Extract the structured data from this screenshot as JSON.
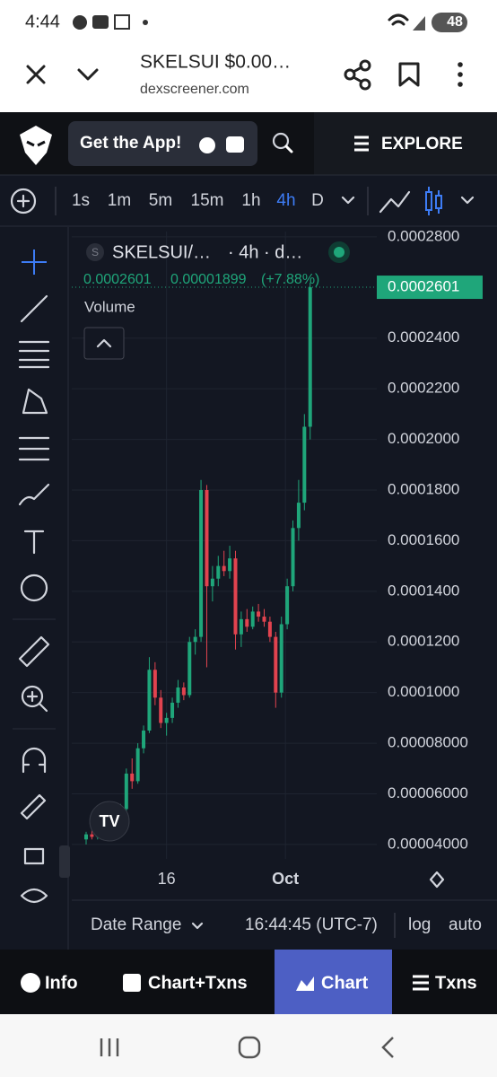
{
  "status_bar": {
    "time": "4:44",
    "battery": "48"
  },
  "browser": {
    "title": "SKELSUI $0.00…",
    "url": "dexscreener.com"
  },
  "header": {
    "app_button": "Get the App!",
    "explore": "EXPLORE"
  },
  "intervals": {
    "items": [
      "1s",
      "1m",
      "5m",
      "15m",
      "1h",
      "4h",
      "D"
    ],
    "active": 5
  },
  "legend": {
    "symbol_icon": "S",
    "symbol": "SKELSUI/…",
    "interval": "· 4h · d…",
    "price": "0.0002601",
    "change": "0.00001899",
    "change_pct": "(+7.88%)",
    "volume": "Volume"
  },
  "chart_data": {
    "type": "candlestick",
    "open": [
      4.2e-05,
      4.4e-05,
      4.3e-05,
      4.6e-05,
      4.8e-05,
      4.7e-05,
      5.1e-05,
      5.4e-05,
      6.8e-05,
      6.5e-05,
      7.8e-05,
      8.5e-05,
      0.000109,
      9.8e-05,
      8.8e-05,
      9e-05,
      9.6e-05,
      0.000102,
      9.9e-05,
      0.00012,
      0.000122,
      0.00018,
      0.000142,
      0.000145,
      0.00015,
      0.000148,
      0.000153,
      0.000123,
      0.000129,
      0.000126,
      0.000132,
      0.00013,
      0.000128,
      0.000122,
      0.0001,
      0.000127,
      0.000142,
      0.000165,
      0.000175,
      0.000205
    ],
    "high": [
      4.5e-05,
      4.7e-05,
      4.8e-05,
      5e-05,
      5.2e-05,
      5.3e-05,
      5.6e-05,
      7e-05,
      7.4e-05,
      8e-05,
      8.7e-05,
      0.000114,
      0.000112,
      0.000101,
      9.2e-05,
      9.8e-05,
      0.000105,
      0.000104,
      0.000122,
      0.000125,
      0.000184,
      0.000182,
      0.00015,
      0.000154,
      0.000156,
      0.000158,
      0.000156,
      0.000132,
      0.000133,
      0.000134,
      0.000135,
      0.000133,
      0.00013,
      0.000124,
      0.00013,
      0.000145,
      0.000168,
      0.000184,
      0.00021,
      0.000262
    ],
    "low": [
      4e-05,
      4.2e-05,
      4.2e-05,
      4.4e-05,
      4.5e-05,
      4.6e-05,
      4.9e-05,
      5.3e-05,
      6.2e-05,
      6.4e-05,
      7.6e-05,
      8.4e-05,
      9.5e-05,
      8.6e-05,
      8.3e-05,
      8.8e-05,
      9.4e-05,
      9.7e-05,
      9.8e-05,
      0.000115,
      0.00012,
      0.00011,
      0.000136,
      0.000142,
      0.000146,
      0.000145,
      0.000117,
      0.000118,
      0.000124,
      0.000125,
      0.000128,
      0.000126,
      0.00012,
      9.4e-05,
      9.8e-05,
      0.000125,
      0.00014,
      0.00016,
      0.000172,
      0.0002
    ],
    "close": [
      4.4e-05,
      4.3e-05,
      4.6e-05,
      4.8e-05,
      4.7e-05,
      5.1e-05,
      5.4e-05,
      6.8e-05,
      6.5e-05,
      7.8e-05,
      8.5e-05,
      0.000109,
      9.8e-05,
      8.8e-05,
      9e-05,
      9.6e-05,
      0.000102,
      9.9e-05,
      0.00012,
      0.000122,
      0.00018,
      0.000142,
      0.000145,
      0.00015,
      0.000148,
      0.000153,
      0.000123,
      0.000129,
      0.000126,
      0.000132,
      0.00013,
      0.000128,
      0.000122,
      0.0001,
      0.000127,
      0.000142,
      0.000165,
      0.000175,
      0.000205,
      0.0002601
    ],
    "up_color": "#1fa67a",
    "down_color": "#e2434f",
    "xlim": [
      -2.5,
      50.6
    ],
    "xticks": [
      {
        "value": 14,
        "label": "16"
      },
      {
        "value": 34.7,
        "label": "Oct"
      }
    ],
    "ylim": [
      3.43e-05,
      0.0002821
    ],
    "yticks": [
      {
        "value": 4e-05,
        "label": "0.00004000"
      },
      {
        "value": 6e-05,
        "label": "0.00006000"
      },
      {
        "value": 8e-05,
        "label": "0.00008000"
      },
      {
        "value": 0.0001,
        "label": "0.0001000"
      },
      {
        "value": 0.00012,
        "label": "0.0001200"
      },
      {
        "value": 0.00014,
        "label": "0.0001400"
      },
      {
        "value": 0.00016,
        "label": "0.0001600"
      },
      {
        "value": 0.00018,
        "label": "0.0001800"
      },
      {
        "value": 0.0002,
        "label": "0.0002000"
      },
      {
        "value": 0.00022,
        "label": "0.0002200"
      },
      {
        "value": 0.00024,
        "label": "0.0002400"
      },
      {
        "value": 0.00028,
        "label": "0.0002800"
      }
    ],
    "grid": true,
    "last_price": {
      "value": 0.0002601,
      "label": "0.0002601"
    }
  },
  "chart_footer": {
    "date_range": "Date Range",
    "time": "16:44:45 (UTC-7)",
    "log": "log",
    "auto": "auto"
  },
  "tabs": {
    "items": [
      "Info",
      "Chart+Txns",
      "Chart",
      "Txns"
    ],
    "active": 2
  }
}
